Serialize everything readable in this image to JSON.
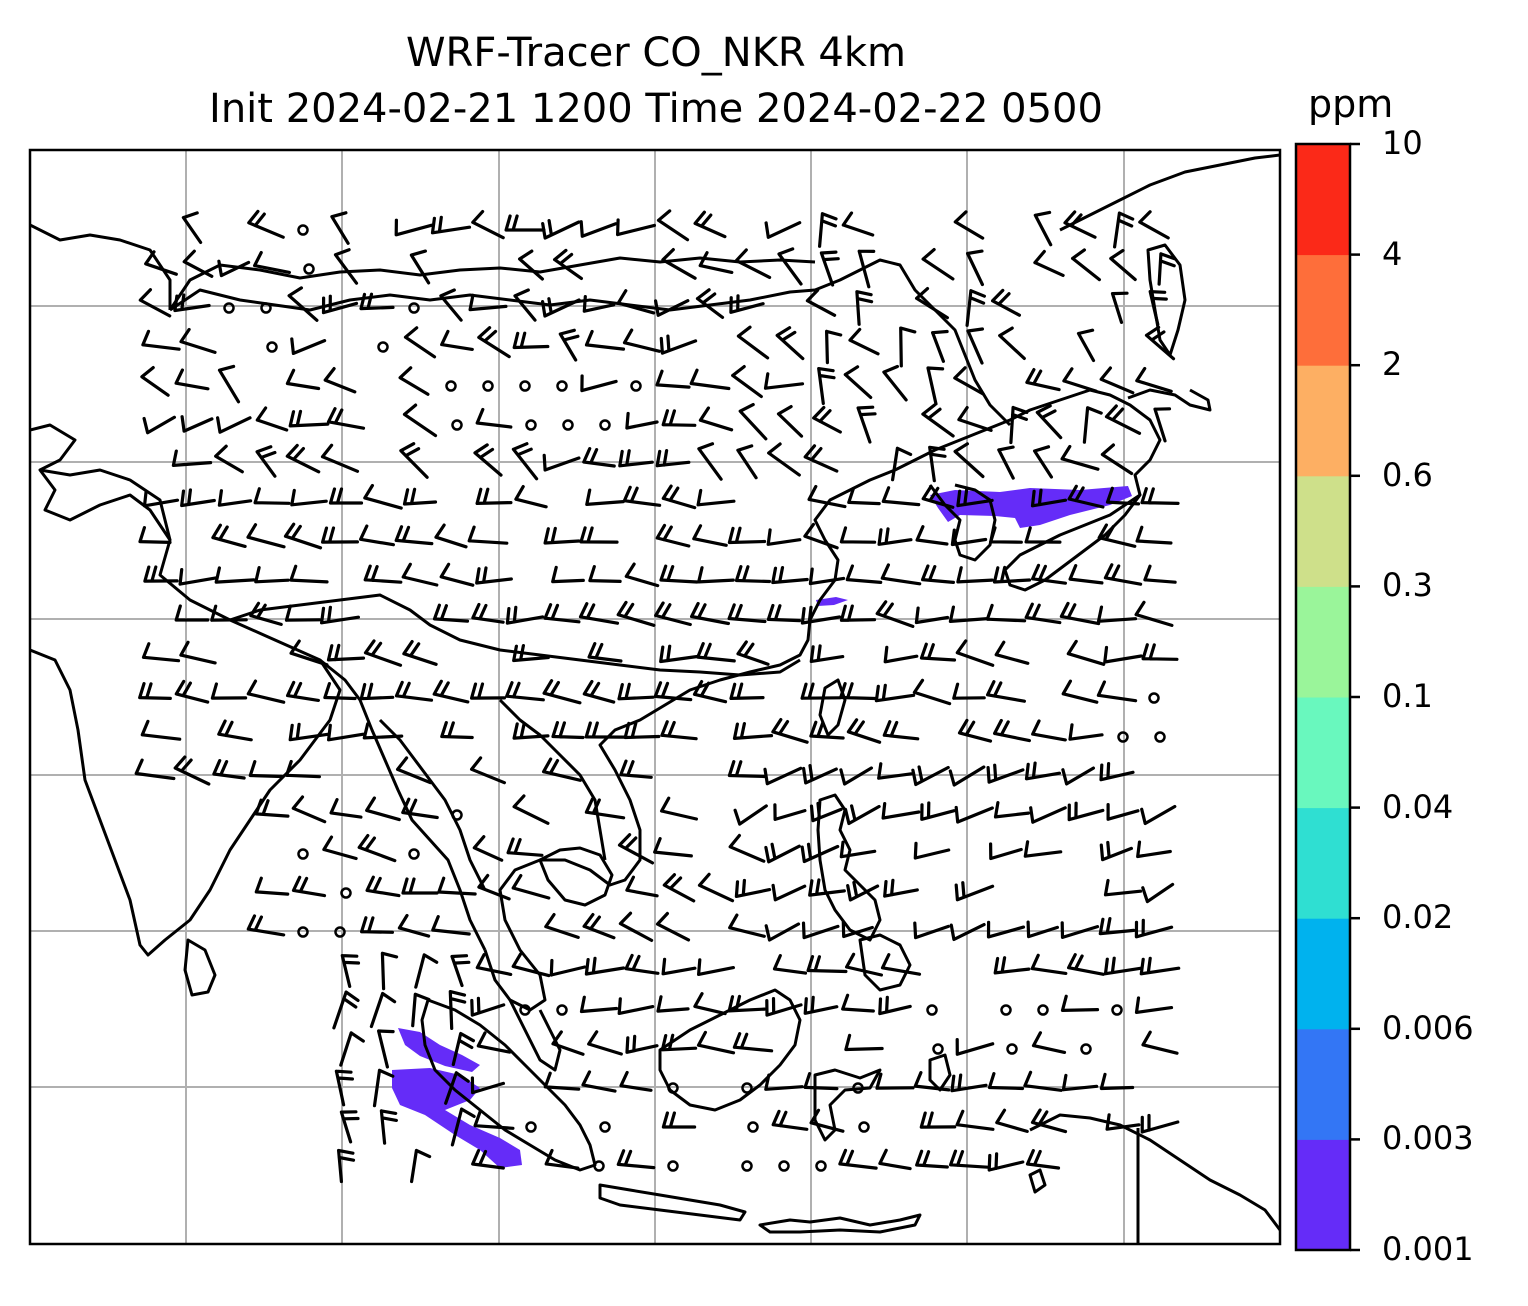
{
  "title": {
    "line1": "WRF-Tracer CO_NKR 4km",
    "line2": "Init 2024-02-21 1200 Time 2024-02-22 0500"
  },
  "colorbar": {
    "unit": "ppm",
    "levels": [
      "0.001",
      "0.003",
      "0.006",
      "0.02",
      "0.04",
      "0.1",
      "0.3",
      "0.6",
      "2",
      "4",
      "10"
    ],
    "colors": [
      "#652cf8",
      "#3376f5",
      "#00b2ee",
      "#2fdfd2",
      "#69f8be",
      "#9af59a",
      "#cee08a",
      "#fdaf63",
      "#fe6e3a",
      "#fb2918"
    ]
  },
  "map": {
    "style": {
      "coastline_color": "#000000",
      "grid_color": "#b0b0b0",
      "plume_color": "#652cf8",
      "barb_color": "#000000"
    },
    "plumes": [
      "Korea-Japan plume (0.001–0.003 ppm)",
      "Sumatra plume (0.001–0.003 ppm)"
    ]
  }
}
